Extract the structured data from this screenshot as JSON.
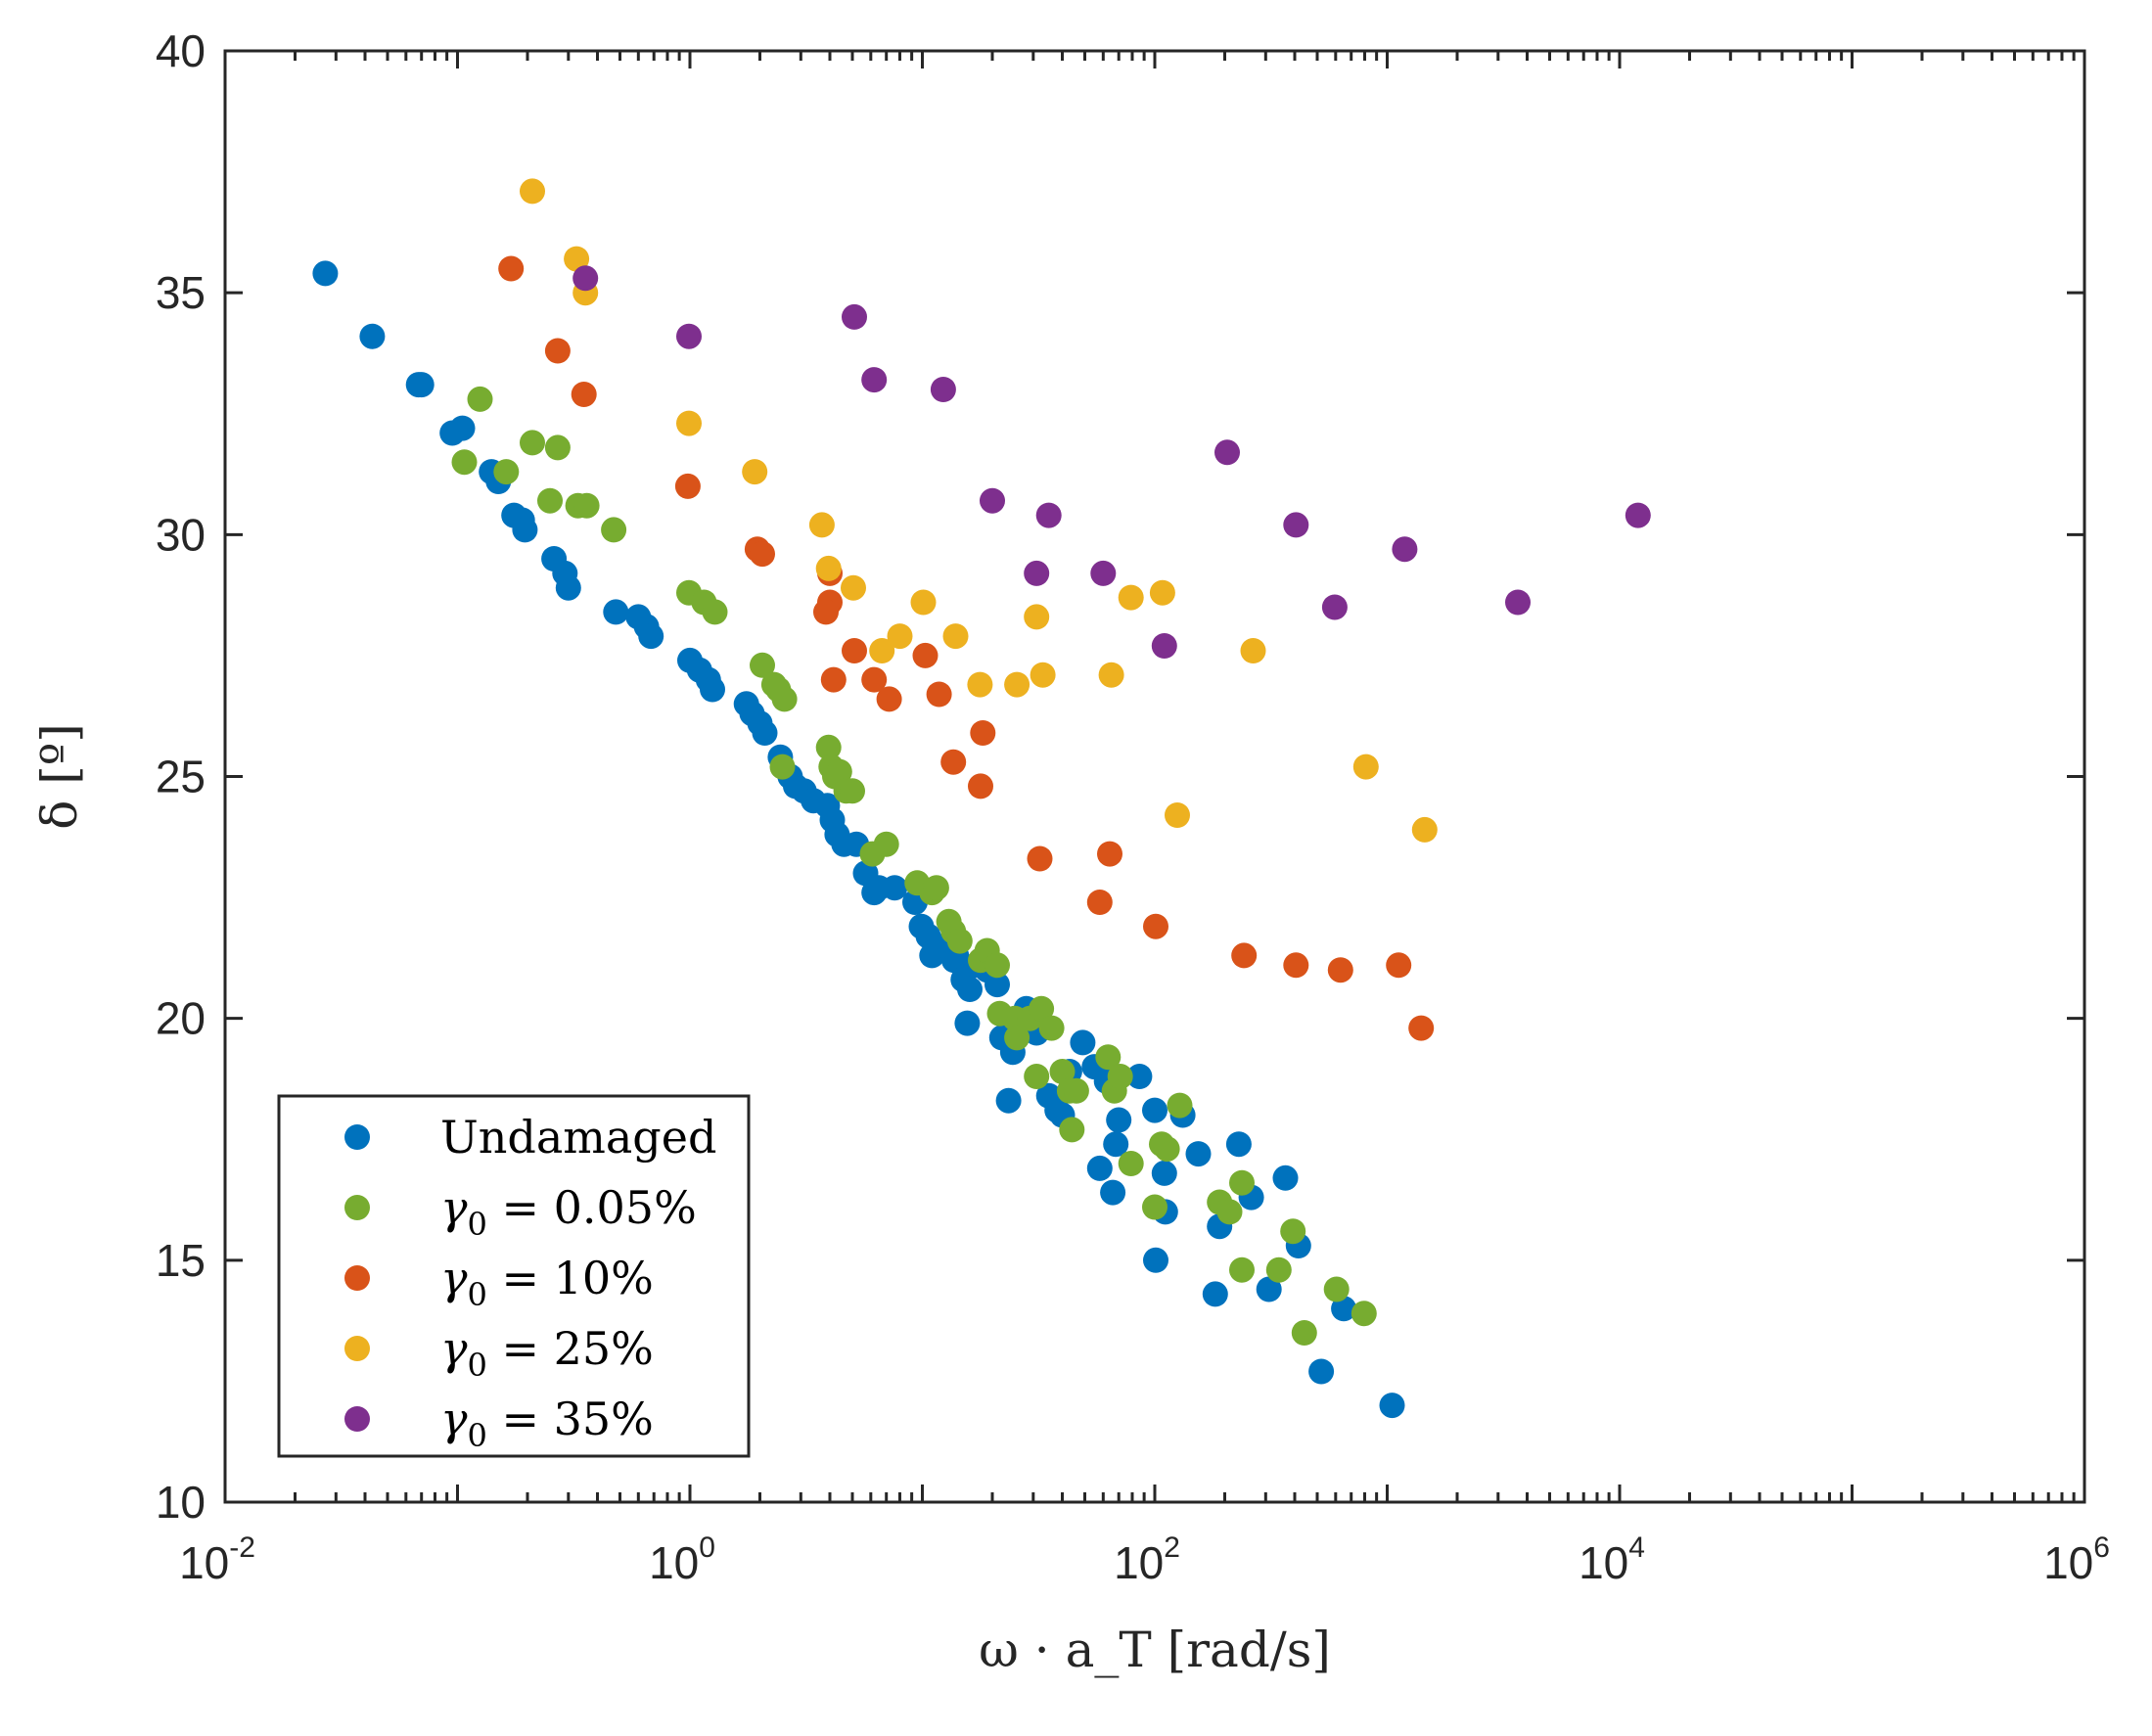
{
  "chart_data": {
    "type": "scatter",
    "xscale": "log",
    "xlim": [
      0.01,
      1000000
    ],
    "ylim": [
      10,
      40
    ],
    "xlabel": "ω · a_T [rad/s]",
    "ylabel": "δ [º]",
    "xticks": [
      {
        "base": "10",
        "exp": "-2",
        "value": 0.01
      },
      {
        "base": "10",
        "exp": "0",
        "value": 1
      },
      {
        "base": "10",
        "exp": "2",
        "value": 100
      },
      {
        "base": "10",
        "exp": "4",
        "value": 10000
      },
      {
        "base": "10",
        "exp": "6",
        "value": 1000000
      }
    ],
    "yticks": [
      "10",
      "15",
      "20",
      "25",
      "30",
      "35",
      "40"
    ],
    "grid": false,
    "legend_position": "bottom-left",
    "series": [
      {
        "name": "Undamaged",
        "color": "#0072BD",
        "legend_parts": [
          {
            "t": "Undamaged",
            "i": false
          }
        ],
        "points": [
          [
            0.027,
            35.4
          ],
          [
            0.043,
            34.1
          ],
          [
            0.068,
            33.1
          ],
          [
            0.07,
            33.1
          ],
          [
            0.095,
            32.1
          ],
          [
            0.105,
            32.2
          ],
          [
            0.14,
            31.3
          ],
          [
            0.15,
            31.1
          ],
          [
            0.175,
            30.4
          ],
          [
            0.19,
            30.3
          ],
          [
            0.195,
            30.1
          ],
          [
            0.26,
            29.5
          ],
          [
            0.29,
            29.2
          ],
          [
            0.3,
            28.9
          ],
          [
            0.48,
            28.4
          ],
          [
            0.6,
            28.3
          ],
          [
            0.65,
            28.1
          ],
          [
            0.68,
            27.9
          ],
          [
            1.0,
            27.4
          ],
          [
            1.1,
            27.2
          ],
          [
            1.2,
            27.0
          ],
          [
            1.25,
            26.8
          ],
          [
            1.75,
            26.5
          ],
          [
            1.85,
            26.3
          ],
          [
            2.0,
            26.1
          ],
          [
            2.1,
            25.9
          ],
          [
            2.45,
            25.4
          ],
          [
            2.7,
            25.0
          ],
          [
            2.85,
            24.8
          ],
          [
            3.1,
            24.7
          ],
          [
            3.4,
            24.5
          ],
          [
            3.9,
            24.4
          ],
          [
            4.1,
            24.1
          ],
          [
            4.3,
            23.8
          ],
          [
            4.6,
            23.6
          ],
          [
            5.2,
            23.6
          ],
          [
            5.7,
            23.0
          ],
          [
            6.2,
            22.6
          ],
          [
            6.5,
            22.7
          ],
          [
            7.6,
            22.7
          ],
          [
            9.3,
            22.4
          ],
          [
            9.9,
            21.9
          ],
          [
            10.6,
            21.7
          ],
          [
            11.0,
            21.3
          ],
          [
            11.5,
            21.5
          ],
          [
            13.7,
            21.2
          ],
          [
            14.0,
            21.3
          ],
          [
            15.0,
            20.8
          ],
          [
            16.0,
            20.6
          ],
          [
            17.0,
            21.1
          ],
          [
            19.0,
            21.0
          ],
          [
            21.0,
            20.7
          ],
          [
            15.6,
            19.9
          ],
          [
            22.0,
            19.6
          ],
          [
            23.5,
            18.3
          ],
          [
            24.5,
            19.3
          ],
          [
            28.0,
            20.2
          ],
          [
            31.0,
            19.7
          ],
          [
            35.0,
            18.4
          ],
          [
            38.0,
            18.1
          ],
          [
            40.0,
            18.0
          ],
          [
            43.0,
            18.9
          ],
          [
            49.0,
            19.5
          ],
          [
            55.0,
            19.0
          ],
          [
            58.0,
            16.9
          ],
          [
            62.0,
            18.7
          ],
          [
            66.0,
            16.4
          ],
          [
            68.0,
            17.4
          ],
          [
            70.0,
            17.9
          ],
          [
            86.0,
            18.8
          ],
          [
            100.0,
            18.1
          ],
          [
            101.0,
            15.0
          ],
          [
            110.0,
            16.8
          ],
          [
            111.0,
            16.0
          ],
          [
            132.0,
            18.0
          ],
          [
            154.0,
            17.2
          ],
          [
            182.0,
            14.3
          ],
          [
            190.0,
            15.7
          ],
          [
            230.0,
            17.4
          ],
          [
            260.0,
            16.3
          ],
          [
            310.0,
            14.4
          ],
          [
            365.0,
            16.7
          ],
          [
            415.0,
            15.3
          ],
          [
            520.0,
            12.7
          ],
          [
            650.0,
            14.0
          ],
          [
            1050.0,
            12.0
          ]
        ]
      },
      {
        "name": "γ0 = 0.05%",
        "color": "#77AC30",
        "legend_parts": [
          {
            "t": "γ",
            "i": true
          },
          {
            "t": "0",
            "i": false,
            "sub": true
          },
          {
            "t": " = 0.05%",
            "i": false
          }
        ],
        "points": [
          [
            0.125,
            32.8
          ],
          [
            0.162,
            31.3
          ],
          [
            0.107,
            31.5
          ],
          [
            0.21,
            31.9
          ],
          [
            0.27,
            31.8
          ],
          [
            0.25,
            30.7
          ],
          [
            0.33,
            30.6
          ],
          [
            0.36,
            30.6
          ],
          [
            0.47,
            30.1
          ],
          [
            0.99,
            28.8
          ],
          [
            1.15,
            28.6
          ],
          [
            1.28,
            28.4
          ],
          [
            2.05,
            27.3
          ],
          [
            2.3,
            26.9
          ],
          [
            2.4,
            26.8
          ],
          [
            2.55,
            26.6
          ],
          [
            2.5,
            25.2
          ],
          [
            3.95,
            25.6
          ],
          [
            4.05,
            25.2
          ],
          [
            4.2,
            25.0
          ],
          [
            4.4,
            25.1
          ],
          [
            4.7,
            24.7
          ],
          [
            5.0,
            24.7
          ],
          [
            6.1,
            23.4
          ],
          [
            7.0,
            23.6
          ],
          [
            9.5,
            22.8
          ],
          [
            11.0,
            22.6
          ],
          [
            11.5,
            22.7
          ],
          [
            13.0,
            22.0
          ],
          [
            13.6,
            21.8
          ],
          [
            14.5,
            21.6
          ],
          [
            17.8,
            21.2
          ],
          [
            19.0,
            21.4
          ],
          [
            21.0,
            21.1
          ],
          [
            21.5,
            20.1
          ],
          [
            25.0,
            20.0
          ],
          [
            25.5,
            19.6
          ],
          [
            29.0,
            20.0
          ],
          [
            31.0,
            18.8
          ],
          [
            32.5,
            20.2
          ],
          [
            36.0,
            19.8
          ],
          [
            40.0,
            18.9
          ],
          [
            43.0,
            18.5
          ],
          [
            44.0,
            17.7
          ],
          [
            46.0,
            18.5
          ],
          [
            63.0,
            19.2
          ],
          [
            67.0,
            18.5
          ],
          [
            71.0,
            18.8
          ],
          [
            79.0,
            17.0
          ],
          [
            100.0,
            16.1
          ],
          [
            107.0,
            17.4
          ],
          [
            113.0,
            17.3
          ],
          [
            128.0,
            18.2
          ],
          [
            190.0,
            16.2
          ],
          [
            210.0,
            16.0
          ],
          [
            237.0,
            14.8
          ],
          [
            237.0,
            16.6
          ],
          [
            342.0,
            14.8
          ],
          [
            393.0,
            15.6
          ],
          [
            440.0,
            13.5
          ],
          [
            605.0,
            14.4
          ],
          [
            795.0,
            13.9
          ]
        ]
      },
      {
        "name": "γ0 = 10%",
        "color": "#D95319",
        "legend_parts": [
          {
            "t": "γ",
            "i": true
          },
          {
            "t": "0",
            "i": false,
            "sub": true
          },
          {
            "t": " = 10%",
            "i": false
          }
        ],
        "points": [
          [
            0.17,
            35.5
          ],
          [
            0.27,
            33.8
          ],
          [
            0.35,
            32.9
          ],
          [
            0.98,
            31.0
          ],
          [
            1.95,
            29.7
          ],
          [
            2.05,
            29.6
          ],
          [
            4.0,
            29.2
          ],
          [
            4.0,
            28.6
          ],
          [
            3.85,
            28.4
          ],
          [
            5.1,
            27.6
          ],
          [
            4.15,
            27.0
          ],
          [
            6.2,
            27.0
          ],
          [
            7.2,
            26.6
          ],
          [
            10.3,
            27.5
          ],
          [
            11.8,
            26.7
          ],
          [
            13.6,
            25.3
          ],
          [
            18.2,
            25.9
          ],
          [
            17.8,
            24.8
          ],
          [
            32.0,
            23.3
          ],
          [
            64.0,
            23.4
          ],
          [
            58.0,
            22.4
          ],
          [
            101.0,
            21.9
          ],
          [
            242.0,
            21.3
          ],
          [
            405.0,
            21.1
          ],
          [
            630.0,
            21.0
          ],
          [
            1120.0,
            21.1
          ],
          [
            1400.0,
            19.8
          ]
        ]
      },
      {
        "name": "γ0 = 25%",
        "color": "#EDB120",
        "legend_parts": [
          {
            "t": "γ",
            "i": true
          },
          {
            "t": "0",
            "i": false,
            "sub": true
          },
          {
            "t": " = 25%",
            "i": false
          }
        ],
        "points": [
          [
            0.21,
            37.1
          ],
          [
            0.325,
            35.7
          ],
          [
            0.355,
            35.0
          ],
          [
            0.99,
            32.3
          ],
          [
            1.9,
            31.3
          ],
          [
            3.7,
            30.2
          ],
          [
            3.95,
            29.3
          ],
          [
            5.05,
            28.9
          ],
          [
            6.7,
            27.6
          ],
          [
            8.0,
            27.9
          ],
          [
            10.1,
            28.6
          ],
          [
            13.9,
            27.9
          ],
          [
            17.7,
            26.9
          ],
          [
            25.5,
            26.9
          ],
          [
            31.0,
            28.3
          ],
          [
            33.0,
            27.1
          ],
          [
            65.0,
            27.1
          ],
          [
            79.0,
            28.7
          ],
          [
            108.0,
            28.8
          ],
          [
            125.0,
            24.2
          ],
          [
            265.0,
            27.6
          ],
          [
            810.0,
            25.2
          ],
          [
            1450.0,
            23.9
          ]
        ]
      },
      {
        "name": "γ0 = 35%",
        "color": "#7E2F8E",
        "legend_parts": [
          {
            "t": "γ",
            "i": true
          },
          {
            "t": "0",
            "i": false,
            "sub": true
          },
          {
            "t": " = 35%",
            "i": false
          }
        ],
        "points": [
          [
            0.355,
            35.3
          ],
          [
            0.99,
            34.1
          ],
          [
            5.1,
            34.5
          ],
          [
            6.2,
            33.2
          ],
          [
            12.3,
            33.0
          ],
          [
            20.0,
            30.7
          ],
          [
            31.0,
            29.2
          ],
          [
            35.0,
            30.4
          ],
          [
            60.0,
            29.2
          ],
          [
            110.0,
            27.7
          ],
          [
            205.0,
            31.7
          ],
          [
            405.0,
            30.2
          ],
          [
            595.0,
            28.5
          ],
          [
            1190.0,
            29.7
          ],
          [
            3650.0,
            28.6
          ],
          [
            12000.0,
            30.4
          ]
        ]
      }
    ]
  }
}
